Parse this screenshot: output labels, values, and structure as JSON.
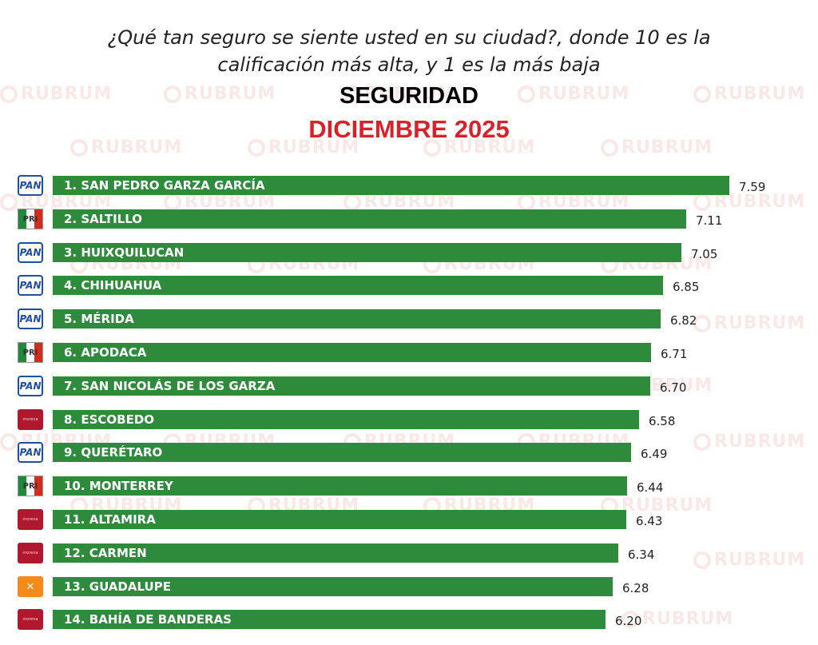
{
  "header": {
    "question_line1": "¿Qué tan seguro se siente usted en su ciudad?, donde 10 es la",
    "question_line2": "calificación más alta, y  1 es la más baja",
    "watermark": "RUBRUM"
  },
  "colors": {
    "bar": "#2e8b3c",
    "title": "#000000",
    "subtitle": "#d8222a"
  },
  "chart_data": {
    "type": "bar",
    "orientation": "horizontal",
    "title": "SEGURIDAD",
    "subtitle": "DICIEMBRE 2025",
    "xlim": [
      0,
      10
    ],
    "categories": [
      "1. SAN PEDRO GARZA GARCÍA",
      "2. SALTILLO",
      "3. HUIXQUILUCAN",
      "4. CHIHUAHUA",
      "5. MÉRIDA",
      "6. APODACA",
      "7. SAN NICOLÁS DE LOS GARZA",
      "8. ESCOBEDO",
      "9. QUERÉTARO",
      "10. MONTERREY",
      "11. ALTAMIRA",
      "12. CARMEN",
      "13. GUADALUPE",
      "14. BAHÍA DE BANDERAS"
    ],
    "values": [
      7.59,
      7.11,
      7.05,
      6.85,
      6.82,
      6.71,
      6.7,
      6.58,
      6.49,
      6.44,
      6.43,
      6.34,
      6.28,
      6.2
    ],
    "value_labels": [
      "7.59",
      "7.11",
      "7.05",
      "6.85",
      "6.82",
      "6.71",
      "6.70",
      "6.58",
      "6.49",
      "6.44",
      "6.43",
      "6.34",
      "6.28",
      "6.20"
    ],
    "party_logos": [
      "pan",
      "pri",
      "pan",
      "pan",
      "pan",
      "pri",
      "pan",
      "morena",
      "pan",
      "pri",
      "morena",
      "morena",
      "mc",
      "morena"
    ],
    "party_logo_text": {
      "pan": "PAN",
      "pri": "PRI",
      "morena": "morena",
      "mc": "✕"
    }
  }
}
